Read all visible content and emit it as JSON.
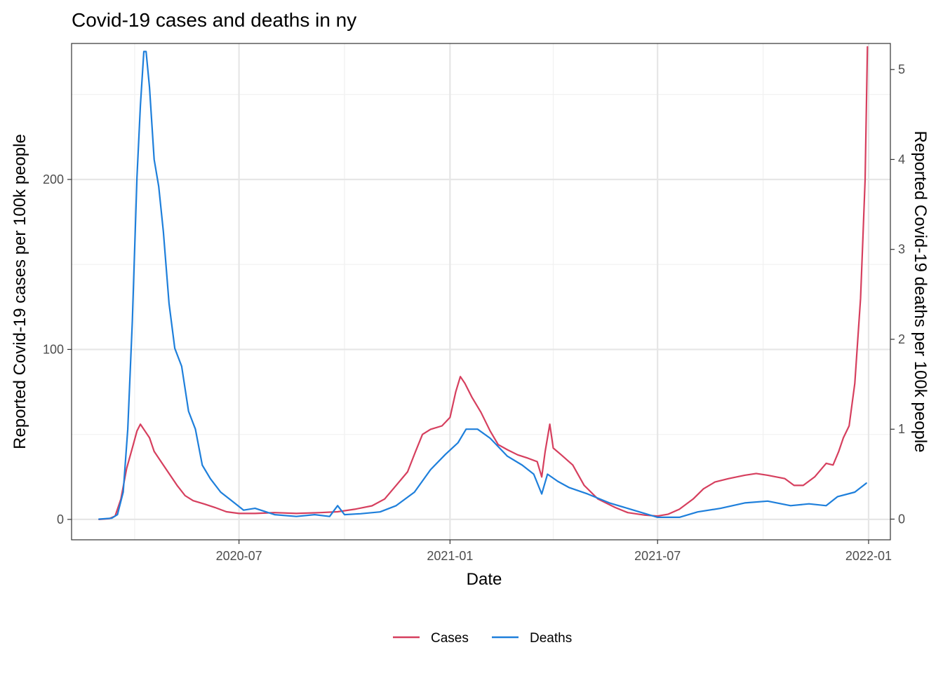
{
  "chart_data": {
    "type": "line",
    "title": "Covid-19 cases and deaths in ny",
    "xlabel": "Date",
    "ylabel_left": "Reported Covid-19 cases per 100k people",
    "ylabel_right": "Reported Covid-19 deaths per 100k people",
    "x_ticks": [
      "2020-07",
      "2021-01",
      "2021-07",
      "2022-01"
    ],
    "y_left_ticks": [
      "0",
      "100",
      "200"
    ],
    "y_right_ticks": [
      "0",
      "1",
      "2",
      "3",
      "4",
      "5"
    ],
    "ylim_left": [
      -12,
      280
    ],
    "ylim_right": [
      -0.23,
      5.29
    ],
    "xlim": [
      "2020-02-06",
      "2022-01-20"
    ],
    "grid": true,
    "legend_position": "bottom",
    "colors": {
      "cases": "#d63f5e",
      "deaths": "#1e7fdb"
    },
    "series": [
      {
        "name": "Cases",
        "axis": "left",
        "points": [
          [
            "2020-03-01",
            0
          ],
          [
            "2020-03-10",
            0.5
          ],
          [
            "2020-03-15",
            2
          ],
          [
            "2020-03-20",
            12
          ],
          [
            "2020-03-25",
            30
          ],
          [
            "2020-03-30",
            42
          ],
          [
            "2020-04-03",
            52
          ],
          [
            "2020-04-06",
            56
          ],
          [
            "2020-04-10",
            52
          ],
          [
            "2020-04-14",
            48
          ],
          [
            "2020-04-18",
            40
          ],
          [
            "2020-04-25",
            33
          ],
          [
            "2020-05-01",
            27
          ],
          [
            "2020-05-08",
            20
          ],
          [
            "2020-05-15",
            14
          ],
          [
            "2020-05-22",
            11
          ],
          [
            "2020-06-01",
            9
          ],
          [
            "2020-06-10",
            7
          ],
          [
            "2020-06-20",
            4.5
          ],
          [
            "2020-07-01",
            3.5
          ],
          [
            "2020-07-15",
            3.5
          ],
          [
            "2020-08-01",
            4
          ],
          [
            "2020-08-20",
            3.5
          ],
          [
            "2020-09-10",
            4
          ],
          [
            "2020-09-25",
            4.5
          ],
          [
            "2020-10-10",
            6
          ],
          [
            "2020-10-25",
            8
          ],
          [
            "2020-11-05",
            12
          ],
          [
            "2020-11-15",
            20
          ],
          [
            "2020-11-25",
            28
          ],
          [
            "2020-12-02",
            40
          ],
          [
            "2020-12-08",
            50
          ],
          [
            "2020-12-15",
            53
          ],
          [
            "2020-12-25",
            55
          ],
          [
            "2021-01-01",
            60
          ],
          [
            "2021-01-06",
            75
          ],
          [
            "2021-01-10",
            84
          ],
          [
            "2021-01-14",
            80
          ],
          [
            "2021-01-20",
            72
          ],
          [
            "2021-01-28",
            63
          ],
          [
            "2021-02-05",
            52
          ],
          [
            "2021-02-12",
            44
          ],
          [
            "2021-02-20",
            41
          ],
          [
            "2021-03-01",
            38
          ],
          [
            "2021-03-10",
            36
          ],
          [
            "2021-03-18",
            34
          ],
          [
            "2021-03-22",
            25
          ],
          [
            "2021-03-25",
            40
          ],
          [
            "2021-03-29",
            56
          ],
          [
            "2021-04-01",
            42
          ],
          [
            "2021-04-08",
            38
          ],
          [
            "2021-04-18",
            32
          ],
          [
            "2021-04-28",
            20
          ],
          [
            "2021-05-10",
            12
          ],
          [
            "2021-05-25",
            7
          ],
          [
            "2021-06-05",
            4
          ],
          [
            "2021-06-20",
            2.5
          ],
          [
            "2021-07-01",
            2
          ],
          [
            "2021-07-10",
            3
          ],
          [
            "2021-07-20",
            6
          ],
          [
            "2021-08-01",
            12
          ],
          [
            "2021-08-10",
            18
          ],
          [
            "2021-08-20",
            22
          ],
          [
            "2021-09-01",
            24
          ],
          [
            "2021-09-15",
            26
          ],
          [
            "2021-09-25",
            27
          ],
          [
            "2021-10-05",
            26
          ],
          [
            "2021-10-20",
            24
          ],
          [
            "2021-10-28",
            20
          ],
          [
            "2021-11-05",
            20
          ],
          [
            "2021-11-15",
            25
          ],
          [
            "2021-11-25",
            33
          ],
          [
            "2021-12-01",
            32
          ],
          [
            "2021-12-06",
            40
          ],
          [
            "2021-12-10",
            48
          ],
          [
            "2021-12-15",
            55
          ],
          [
            "2021-12-20",
            80
          ],
          [
            "2021-12-25",
            130
          ],
          [
            "2021-12-27",
            165
          ],
          [
            "2021-12-29",
            200
          ],
          [
            "2021-12-31",
            278
          ]
        ]
      },
      {
        "name": "Deaths",
        "axis": "right",
        "points": [
          [
            "2020-03-01",
            0
          ],
          [
            "2020-03-12",
            0.01
          ],
          [
            "2020-03-17",
            0.05
          ],
          [
            "2020-03-22",
            0.3
          ],
          [
            "2020-03-26",
            1.0
          ],
          [
            "2020-03-30",
            2.2
          ],
          [
            "2020-04-03",
            3.8
          ],
          [
            "2020-04-06",
            4.6
          ],
          [
            "2020-04-09",
            5.2
          ],
          [
            "2020-04-11",
            5.2
          ],
          [
            "2020-04-14",
            4.8
          ],
          [
            "2020-04-18",
            4.0
          ],
          [
            "2020-04-22",
            3.7
          ],
          [
            "2020-04-26",
            3.2
          ],
          [
            "2020-05-01",
            2.4
          ],
          [
            "2020-05-06",
            1.9
          ],
          [
            "2020-05-12",
            1.7
          ],
          [
            "2020-05-18",
            1.2
          ],
          [
            "2020-05-24",
            1.0
          ],
          [
            "2020-05-30",
            0.6
          ],
          [
            "2020-06-06",
            0.45
          ],
          [
            "2020-06-15",
            0.3
          ],
          [
            "2020-06-25",
            0.2
          ],
          [
            "2020-07-05",
            0.1
          ],
          [
            "2020-07-15",
            0.12
          ],
          [
            "2020-08-01",
            0.05
          ],
          [
            "2020-08-20",
            0.03
          ],
          [
            "2020-09-05",
            0.05
          ],
          [
            "2020-09-18",
            0.03
          ],
          [
            "2020-09-25",
            0.15
          ],
          [
            "2020-10-01",
            0.05
          ],
          [
            "2020-10-15",
            0.06
          ],
          [
            "2020-11-01",
            0.08
          ],
          [
            "2020-11-15",
            0.15
          ],
          [
            "2020-12-01",
            0.3
          ],
          [
            "2020-12-15",
            0.55
          ],
          [
            "2020-12-28",
            0.72
          ],
          [
            "2021-01-08",
            0.85
          ],
          [
            "2021-01-15",
            1.0
          ],
          [
            "2021-01-25",
            1.0
          ],
          [
            "2021-02-05",
            0.9
          ],
          [
            "2021-02-20",
            0.7
          ],
          [
            "2021-03-05",
            0.6
          ],
          [
            "2021-03-15",
            0.5
          ],
          [
            "2021-03-22",
            0.28
          ],
          [
            "2021-03-27",
            0.5
          ],
          [
            "2021-04-05",
            0.42
          ],
          [
            "2021-04-15",
            0.35
          ],
          [
            "2021-05-01",
            0.28
          ],
          [
            "2021-05-20",
            0.18
          ],
          [
            "2021-06-10",
            0.1
          ],
          [
            "2021-07-01",
            0.02
          ],
          [
            "2021-07-20",
            0.02
          ],
          [
            "2021-08-05",
            0.08
          ],
          [
            "2021-08-25",
            0.12
          ],
          [
            "2021-09-15",
            0.18
          ],
          [
            "2021-10-05",
            0.2
          ],
          [
            "2021-10-25",
            0.15
          ],
          [
            "2021-11-10",
            0.17
          ],
          [
            "2021-11-25",
            0.15
          ],
          [
            "2021-12-05",
            0.25
          ],
          [
            "2021-12-20",
            0.3
          ],
          [
            "2021-12-30",
            0.4
          ]
        ]
      }
    ]
  }
}
